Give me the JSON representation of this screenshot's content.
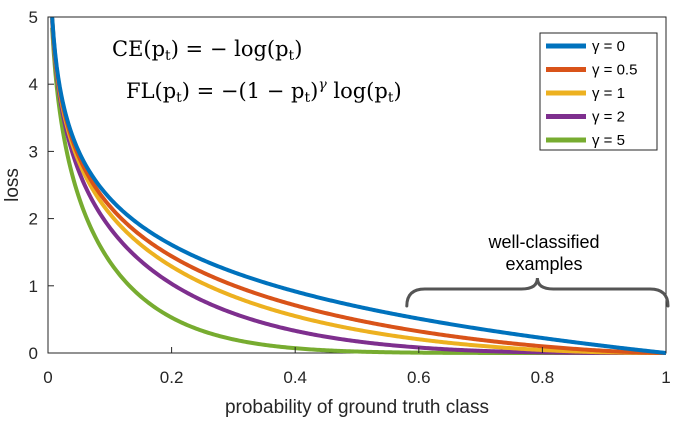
{
  "chart_data": {
    "type": "line",
    "xlabel": "probability of ground truth class",
    "ylabel": "loss",
    "xlim": [
      0,
      1
    ],
    "ylim": [
      0,
      5
    ],
    "x_ticks": [
      "0",
      "0.2",
      "0.4",
      "0.6",
      "0.8",
      "1"
    ],
    "y_ticks": [
      "0",
      "1",
      "2",
      "3",
      "4",
      "5"
    ],
    "grid": false,
    "legend_position": "top-right",
    "series": [
      {
        "name": "γ = 0",
        "gamma": 0,
        "color": "#0072BD",
        "x": [
          0.0067,
          0.02,
          0.05,
          0.1,
          0.2,
          0.3,
          0.4,
          0.5,
          0.6,
          0.7,
          0.8,
          0.9,
          1.0
        ],
        "y": [
          5.0,
          3.91,
          3.0,
          2.3,
          1.61,
          1.2,
          0.92,
          0.69,
          0.51,
          0.36,
          0.22,
          0.11,
          0.0
        ]
      },
      {
        "name": "γ = 0.5",
        "gamma": 0.5,
        "color": "#D95319",
        "x": [
          0.0067,
          0.02,
          0.05,
          0.1,
          0.2,
          0.3,
          0.4,
          0.5,
          0.6,
          0.7,
          0.8,
          0.9,
          1.0
        ],
        "y": [
          5.0,
          3.87,
          2.92,
          2.18,
          1.44,
          1.01,
          0.71,
          0.49,
          0.32,
          0.2,
          0.1,
          0.03,
          0.0
        ]
      },
      {
        "name": "γ = 1",
        "gamma": 1,
        "color": "#EDB120",
        "x": [
          0.0067,
          0.02,
          0.05,
          0.1,
          0.2,
          0.3,
          0.4,
          0.5,
          0.6,
          0.7,
          0.8,
          0.9,
          1.0
        ],
        "y": [
          4.97,
          3.83,
          2.85,
          2.07,
          1.29,
          0.84,
          0.55,
          0.35,
          0.2,
          0.11,
          0.04,
          0.01,
          0.0
        ]
      },
      {
        "name": "γ = 2",
        "gamma": 2,
        "color": "#7E2F8E",
        "x": [
          0.0067,
          0.02,
          0.05,
          0.1,
          0.2,
          0.3,
          0.4,
          0.5,
          0.6,
          0.7,
          0.8,
          0.9,
          1.0
        ],
        "y": [
          4.93,
          3.76,
          2.7,
          1.87,
          1.03,
          0.59,
          0.33,
          0.17,
          0.08,
          0.03,
          0.01,
          0.0,
          0.0
        ]
      },
      {
        "name": "γ = 5",
        "gamma": 5,
        "color": "#77AC30",
        "x": [
          0.0067,
          0.02,
          0.05,
          0.1,
          0.2,
          0.3,
          0.4,
          0.5,
          0.6,
          0.7,
          0.8,
          0.9,
          1.0
        ],
        "y": [
          4.84,
          3.54,
          2.32,
          1.36,
          0.53,
          0.2,
          0.07,
          0.02,
          0.01,
          0.0,
          0.0,
          0.0,
          0.0
        ]
      }
    ],
    "annotations": {
      "formula_ce": {
        "lhs": "CE(p",
        "sub": "t",
        "mid": ") = − log(p",
        "sub2": "t",
        "end": ")"
      },
      "formula_fl": {
        "lhs": "FL(p",
        "sub": "t",
        "mid": ") = −(1 − p",
        "sub2": "t",
        "pow": ")",
        "gamma": "γ",
        "log": " log(p",
        "sub3": "t",
        "end": ")"
      },
      "bracket_text_line1": "well-classified",
      "bracket_text_line2": "examples",
      "bracket_x_range": [
        0.6,
        1.0
      ]
    }
  }
}
